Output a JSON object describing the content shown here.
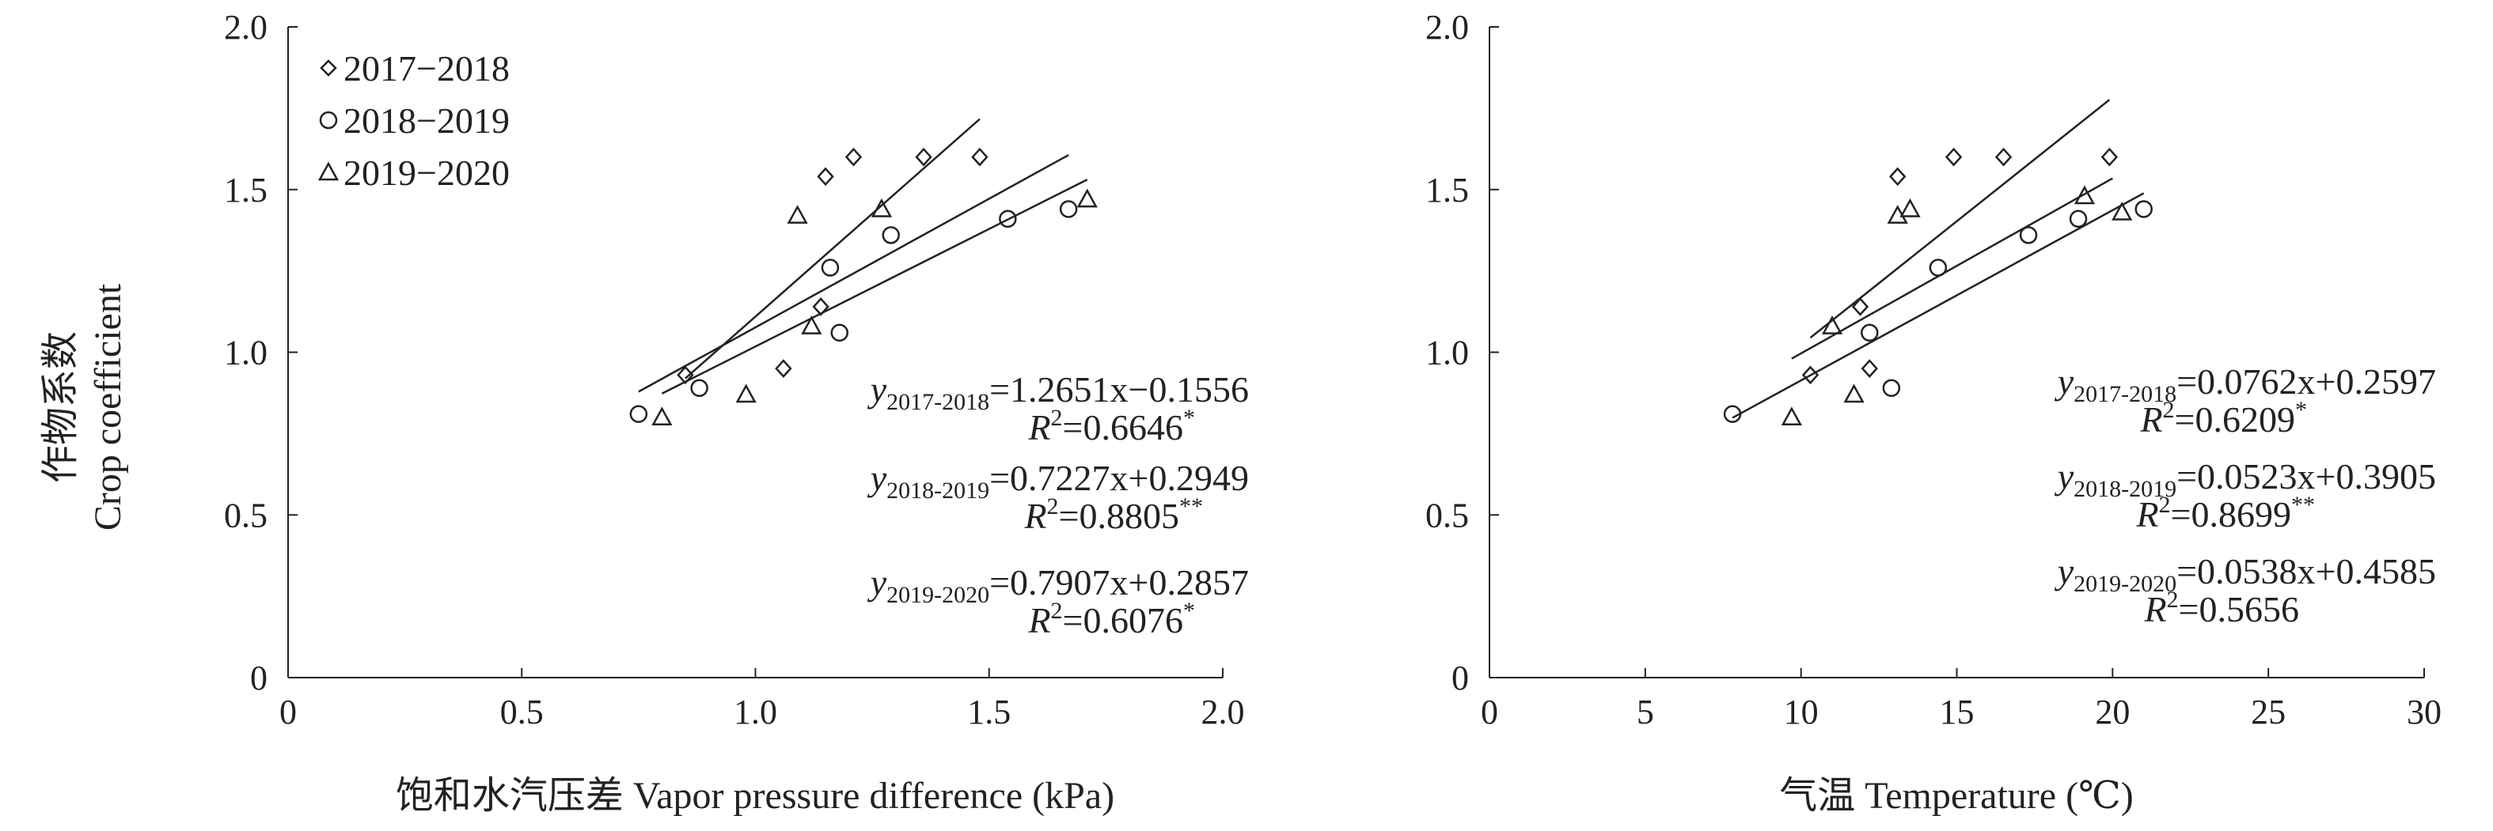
{
  "chart_data": [
    {
      "type": "scatter",
      "xlabel": "饱和水汽压差 Vapor pressure difference (kPa)",
      "ylabel_cn": "作物系数",
      "ylabel_en": "Crop coefficient",
      "xlim": [
        0,
        2.0
      ],
      "ylim": [
        0,
        2.0
      ],
      "x_ticks": [
        "0",
        "0.5",
        "1.0",
        "1.5",
        "2.0"
      ],
      "y_ticks": [
        "0",
        "0.5",
        "1.0",
        "1.5",
        "2.0"
      ],
      "x_tick_values": [
        0,
        0.5,
        1.0,
        1.5,
        2.0
      ],
      "y_tick_values": [
        0,
        0.5,
        1.0,
        1.5,
        2.0
      ],
      "legend_position": "top-left",
      "legend": [
        "2017−2018",
        "2018−2019",
        "2019−2020"
      ],
      "series": [
        {
          "name": "2017−2018",
          "marker": "diamond",
          "points": [
            [
              0.85,
              0.93
            ],
            [
              1.06,
              0.95
            ],
            [
              1.14,
              1.14
            ],
            [
              1.15,
              1.54
            ],
            [
              1.21,
              1.6
            ],
            [
              1.36,
              1.6
            ],
            [
              1.48,
              1.6
            ]
          ],
          "fit": {
            "slope": 1.2651,
            "intercept": -0.1556,
            "x_range": [
              0.85,
              1.48
            ]
          },
          "eq_y_sub": "2017-2018",
          "eq_rhs": "=1.2651x−0.1556",
          "r2": "=0.6646",
          "r2_sig": "*"
        },
        {
          "name": "2018−2019",
          "marker": "circle",
          "points": [
            [
              0.75,
              0.81
            ],
            [
              0.88,
              0.89
            ],
            [
              1.16,
              1.26
            ],
            [
              1.18,
              1.06
            ],
            [
              1.29,
              1.36
            ],
            [
              1.54,
              1.41
            ],
            [
              1.67,
              1.44
            ]
          ],
          "fit": {
            "slope": 0.7227,
            "intercept": 0.2949,
            "x_range": [
              0.8,
              1.71
            ]
          },
          "eq_y_sub": "2018-2019",
          "eq_rhs": "=0.7227x+0.2949",
          "r2": "=0.8805",
          "r2_sig": "**"
        },
        {
          "name": "2019−2020",
          "marker": "triangle",
          "points": [
            [
              0.8,
              0.8
            ],
            [
              0.98,
              0.87
            ],
            [
              1.09,
              1.42
            ],
            [
              1.12,
              1.08
            ],
            [
              1.27,
              1.44
            ],
            [
              1.71,
              1.47
            ]
          ],
          "fit": {
            "slope": 0.7907,
            "intercept": 0.2857,
            "x_range": [
              0.75,
              1.67
            ]
          },
          "eq_y_sub": "2019-2020",
          "eq_rhs": "=0.7907x+0.2857",
          "r2": "=0.6076",
          "r2_sig": "*"
        }
      ]
    },
    {
      "type": "scatter",
      "xlabel": "气温 Temperature (℃)",
      "xlim": [
        0,
        30
      ],
      "ylim": [
        0,
        2.0
      ],
      "x_ticks": [
        "0",
        "5",
        "10",
        "15",
        "20",
        "25",
        "30"
      ],
      "y_ticks": [
        "0",
        "0.5",
        "1.0",
        "1.5",
        "2.0"
      ],
      "x_tick_values": [
        0,
        5,
        10,
        15,
        20,
        25,
        30
      ],
      "y_tick_values": [
        0,
        0.5,
        1.0,
        1.5,
        2.0
      ],
      "series": [
        {
          "name": "2017−2018",
          "marker": "diamond",
          "points": [
            [
              10.3,
              0.93
            ],
            [
              11.9,
              1.14
            ],
            [
              12.2,
              0.95
            ],
            [
              13.1,
              1.54
            ],
            [
              14.9,
              1.6
            ],
            [
              16.5,
              1.6
            ],
            [
              19.9,
              1.6
            ]
          ],
          "fit": {
            "slope": 0.0762,
            "intercept": 0.2597,
            "x_range": [
              10.3,
              19.9
            ]
          },
          "eq_y_sub": "2017-2018",
          "eq_rhs": "=0.0762x+0.2597",
          "r2": "=0.6209",
          "r2_sig": "*"
        },
        {
          "name": "2018−2019",
          "marker": "circle",
          "points": [
            [
              7.8,
              0.81
            ],
            [
              12.2,
              1.06
            ],
            [
              12.9,
              0.89
            ],
            [
              14.4,
              1.26
            ],
            [
              17.3,
              1.36
            ],
            [
              18.9,
              1.41
            ],
            [
              21.0,
              1.44
            ]
          ],
          "fit": {
            "slope": 0.0523,
            "intercept": 0.3905,
            "x_range": [
              7.8,
              21.0
            ]
          },
          "eq_y_sub": "2018-2019",
          "eq_rhs": "=0.0523x+0.3905",
          "r2": "=0.8699",
          "r2_sig": "**"
        },
        {
          "name": "2019−2020",
          "marker": "triangle",
          "points": [
            [
              9.7,
              0.8
            ],
            [
              11.0,
              1.08
            ],
            [
              11.7,
              0.87
            ],
            [
              13.1,
              1.42
            ],
            [
              13.5,
              1.44
            ],
            [
              19.1,
              1.48
            ],
            [
              20.3,
              1.43
            ]
          ],
          "fit": {
            "slope": 0.0538,
            "intercept": 0.4585,
            "x_range": [
              9.7,
              20.0
            ]
          },
          "eq_y_sub": "2019-2020",
          "eq_rhs": "=0.0538x+0.4585",
          "r2": "=0.5656",
          "r2_sig": ""
        }
      ]
    }
  ]
}
